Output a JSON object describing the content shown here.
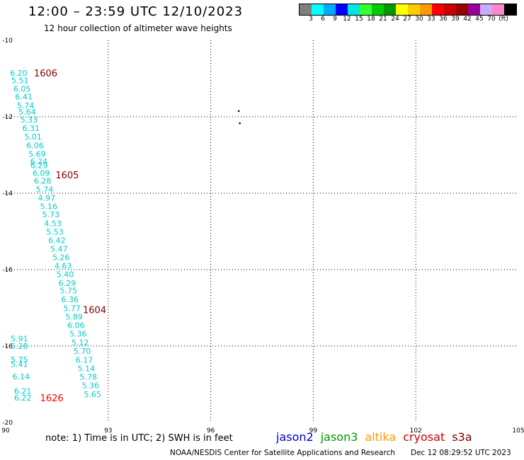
{
  "header": {
    "title": "12:00 – 23:59 UTC 12/10/2023",
    "subtitle": "12 hour collection of altimeter wave heights"
  },
  "colorbar": {
    "colors": [
      "#7f7f7f",
      "#00ffff",
      "#00aaff",
      "#0000ff",
      "#00e6e6",
      "#33ff33",
      "#00cc00",
      "#009900",
      "#ffff00",
      "#ffcc00",
      "#ff9900",
      "#ff0000",
      "#cc0000",
      "#990000",
      "#990099",
      "#ccaaff",
      "#ff88cc",
      "#000000"
    ],
    "labels": [
      "3",
      "6",
      "9",
      "12",
      "15",
      "18",
      "21",
      "24",
      "27",
      "30",
      "33",
      "36",
      "39",
      "42",
      "45",
      "70",
      "(ft)"
    ]
  },
  "map": {
    "lon_range": [
      90,
      105
    ],
    "lat_range": [
      -20,
      -10
    ],
    "x_ticks": [
      "90",
      "93",
      "96",
      "99",
      "102",
      "105"
    ],
    "y_ticks": [
      "-10",
      "-12",
      "-14",
      "-16",
      "-18",
      "-20"
    ],
    "wave_labels": [
      {
        "lon": 90.38,
        "lat": -10.85,
        "text": "6.20"
      },
      {
        "lon": 90.42,
        "lat": -11.05,
        "text": "5.51"
      },
      {
        "lon": 90.48,
        "lat": -11.27,
        "text": "6.05"
      },
      {
        "lon": 90.53,
        "lat": -11.47,
        "text": "6.41"
      },
      {
        "lon": 90.58,
        "lat": -11.7,
        "text": "5.74"
      },
      {
        "lon": 90.63,
        "lat": -11.87,
        "text": "5.64"
      },
      {
        "lon": 90.68,
        "lat": -12.07,
        "text": "5.33"
      },
      {
        "lon": 90.74,
        "lat": -12.3,
        "text": "6.31"
      },
      {
        "lon": 90.8,
        "lat": -12.52,
        "text": "5.01"
      },
      {
        "lon": 90.86,
        "lat": -12.75,
        "text": "6.06"
      },
      {
        "lon": 90.92,
        "lat": -12.97,
        "text": "5.69"
      },
      {
        "lon": 90.97,
        "lat": -13.17,
        "text": "6.24"
      },
      {
        "lon": 90.98,
        "lat": -13.27,
        "text": "6.29"
      },
      {
        "lon": 91.04,
        "lat": -13.47,
        "text": "6.09"
      },
      {
        "lon": 91.08,
        "lat": -13.68,
        "text": "6.28"
      },
      {
        "lon": 91.14,
        "lat": -13.9,
        "text": "5.74"
      },
      {
        "lon": 91.2,
        "lat": -14.12,
        "text": "4.97"
      },
      {
        "lon": 91.26,
        "lat": -14.34,
        "text": "5.16"
      },
      {
        "lon": 91.32,
        "lat": -14.56,
        "text": "5.73"
      },
      {
        "lon": 91.38,
        "lat": -14.79,
        "text": "4.53"
      },
      {
        "lon": 91.44,
        "lat": -15.01,
        "text": "5.53"
      },
      {
        "lon": 91.5,
        "lat": -15.23,
        "text": "6.42"
      },
      {
        "lon": 91.56,
        "lat": -15.45,
        "text": "5.47"
      },
      {
        "lon": 91.62,
        "lat": -15.68,
        "text": "5.26"
      },
      {
        "lon": 91.68,
        "lat": -15.9,
        "text": "4.63"
      },
      {
        "lon": 91.74,
        "lat": -16.12,
        "text": "5.40"
      },
      {
        "lon": 91.8,
        "lat": -16.35,
        "text": "6.29"
      },
      {
        "lon": 91.84,
        "lat": -16.55,
        "text": "5.75"
      },
      {
        "lon": 91.88,
        "lat": -16.78,
        "text": "6.36"
      },
      {
        "lon": 91.94,
        "lat": -17.01,
        "text": "5.77"
      },
      {
        "lon": 92.0,
        "lat": -17.23,
        "text": "5.89"
      },
      {
        "lon": 92.06,
        "lat": -17.45,
        "text": "6.06"
      },
      {
        "lon": 92.12,
        "lat": -17.68,
        "text": "5.36"
      },
      {
        "lon": 92.18,
        "lat": -17.91,
        "text": "5.12"
      },
      {
        "lon": 92.24,
        "lat": -18.13,
        "text": "5.70"
      },
      {
        "lon": 92.3,
        "lat": -18.36,
        "text": "6.17"
      },
      {
        "lon": 92.36,
        "lat": -18.58,
        "text": "5.14"
      },
      {
        "lon": 92.42,
        "lat": -18.81,
        "text": "5.78"
      },
      {
        "lon": 92.48,
        "lat": -19.03,
        "text": "5.36"
      },
      {
        "lon": 92.54,
        "lat": -19.26,
        "text": "5.65"
      },
      {
        "lon": 90.4,
        "lat": -17.81,
        "text": "5.91"
      },
      {
        "lon": 90.4,
        "lat": -18.0,
        "text": "5.28"
      },
      {
        "lon": 90.4,
        "lat": -18.35,
        "text": "5.75"
      },
      {
        "lon": 90.4,
        "lat": -18.47,
        "text": "5.41"
      },
      {
        "lon": 90.45,
        "lat": -18.8,
        "text": "6.14"
      },
      {
        "lon": 90.5,
        "lat": -19.18,
        "text": "6.21"
      },
      {
        "lon": 90.5,
        "lat": -19.35,
        "text": "6.22"
      }
    ],
    "time_labels": [
      {
        "lon": 91.17,
        "lat": -10.85,
        "text": "1606",
        "color": "#800000"
      },
      {
        "lon": 91.8,
        "lat": -13.52,
        "text": "1605",
        "color": "#800000"
      },
      {
        "lon": 92.6,
        "lat": -17.05,
        "text": "1604",
        "color": "#800000"
      },
      {
        "lon": 91.35,
        "lat": -19.35,
        "text": "1626",
        "color": "#ff0000"
      }
    ],
    "island_marks": [
      {
        "lon": 96.82,
        "lat": -11.85
      },
      {
        "lon": 96.85,
        "lat": -12.17
      }
    ],
    "label_color": "#00cccc"
  },
  "note": "note:  1) Time is in UTC;  2) SWH is in feet",
  "missions": [
    {
      "name": "jason2",
      "color": "#0000cc"
    },
    {
      "name": "jason3",
      "color": "#009900"
    },
    {
      "name": "altika",
      "color": "#ff9900"
    },
    {
      "name": "cryosat",
      "color": "#cc0000"
    },
    {
      "name": "s3a",
      "color": "#800000"
    }
  ],
  "footer": {
    "credit": "NOAA/NESDIS Center for Satellite Applications and Research",
    "timestamp": "Dec 12 08:29:52 UTC 2023"
  }
}
